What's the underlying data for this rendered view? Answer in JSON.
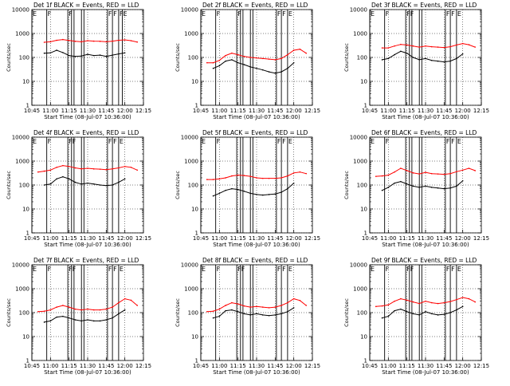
{
  "figure": {
    "time_ticks": [
      "10:45",
      "11:00",
      "11:15",
      "11:30",
      "11:45",
      "12:00",
      "12:15"
    ],
    "log_ticks": [
      "1",
      "10",
      "100",
      "1000",
      "10000"
    ],
    "colors": {
      "events": "#000000",
      "lld": "#ff0000",
      "axis": "#000000",
      "grid": "#000000"
    }
  },
  "chart_data": [
    {
      "type": "line",
      "title": "Det 1f BLACK = Events, RED = LLD",
      "xlabel": "Start Time (08-Jul-07 10:36:00)",
      "ylabel": "Counts/sec",
      "y_scale": "log",
      "ylim": [
        1,
        10000
      ],
      "xlim": [
        "10:45",
        "12:15"
      ],
      "grid": "dotted",
      "x": [
        "10:50",
        "10:55",
        "11:00",
        "11:05",
        "11:10",
        "11:15",
        "11:20",
        "11:25",
        "11:30",
        "11:35",
        "11:40",
        "11:45",
        "11:50",
        "11:55",
        "12:00",
        "12:05",
        "12:10"
      ],
      "series": [
        {
          "name": "Events",
          "values": [
            null,
            150,
            155,
            200,
            160,
            120,
            110,
            115,
            135,
            120,
            125,
            110,
            125,
            140,
            155,
            null,
            null
          ]
        },
        {
          "name": "LLD",
          "values": [
            null,
            430,
            450,
            520,
            560,
            510,
            470,
            450,
            500,
            480,
            470,
            450,
            480,
            520,
            540,
            500,
            440
          ]
        }
      ],
      "markers": [
        {
          "time": "10:45",
          "label": "E"
        },
        {
          "time": "10:57",
          "label": "F"
        },
        {
          "time": "11:14",
          "label": "F"
        },
        {
          "time": "11:17",
          "label": ""
        },
        {
          "time": "11:19",
          "label": ""
        },
        {
          "time": "11:25",
          "label": ""
        },
        {
          "time": "11:27",
          "label": ""
        },
        {
          "time": "11:46",
          "label": "F"
        },
        {
          "time": "11:50",
          "label": "F"
        },
        {
          "time": "11:55",
          "label": "F"
        },
        {
          "time": "11:58",
          "label": "E"
        }
      ]
    },
    {
      "type": "line",
      "title": "Det 2f BLACK = Events, RED = LLD",
      "xlabel": "Start Time (08-Jul-07 10:36:00)",
      "ylabel": "Counts/sec",
      "y_scale": "log",
      "ylim": [
        1,
        10000
      ],
      "xlim": [
        "10:45",
        "12:15"
      ],
      "grid": "dotted",
      "x": [
        "10:50",
        "10:55",
        "11:00",
        "11:05",
        "11:10",
        "11:15",
        "11:20",
        "11:25",
        "11:30",
        "11:35",
        "11:40",
        "11:45",
        "11:50",
        "11:55",
        "12:00",
        "12:05",
        "12:10"
      ],
      "series": [
        {
          "name": "Events",
          "values": [
            null,
            35,
            45,
            70,
            80,
            60,
            50,
            40,
            35,
            30,
            25,
            22,
            25,
            35,
            60,
            null,
            null
          ]
        },
        {
          "name": "LLD",
          "values": [
            60,
            60,
            75,
            120,
            150,
            130,
            110,
            100,
            95,
            90,
            85,
            80,
            90,
            130,
            200,
            220,
            150
          ]
        }
      ],
      "markers": [
        {
          "time": "10:45",
          "label": "E"
        },
        {
          "time": "10:57",
          "label": "F"
        },
        {
          "time": "11:14",
          "label": "F"
        },
        {
          "time": "11:17",
          "label": ""
        },
        {
          "time": "11:19",
          "label": ""
        },
        {
          "time": "11:25",
          "label": ""
        },
        {
          "time": "11:27",
          "label": ""
        },
        {
          "time": "11:46",
          "label": "F"
        },
        {
          "time": "11:50",
          "label": "F"
        },
        {
          "time": "11:55",
          "label": "E"
        }
      ]
    },
    {
      "type": "line",
      "title": "Det 3f BLACK = Events, RED = LLD",
      "xlabel": "Start Time (08-Jul-07 10:36:00)",
      "ylabel": "Counts/sec",
      "y_scale": "log",
      "ylim": [
        1,
        10000
      ],
      "xlim": [
        "10:45",
        "12:15"
      ],
      "grid": "dotted",
      "x": [
        "10:50",
        "10:55",
        "11:00",
        "11:05",
        "11:10",
        "11:15",
        "11:20",
        "11:25",
        "11:30",
        "11:35",
        "11:40",
        "11:45",
        "11:50",
        "11:55",
        "12:00",
        "12:05",
        "12:10"
      ],
      "series": [
        {
          "name": "Events",
          "values": [
            null,
            80,
            90,
            130,
            180,
            150,
            100,
            80,
            90,
            75,
            70,
            65,
            70,
            90,
            140,
            null,
            null
          ]
        },
        {
          "name": "LLD",
          "values": [
            null,
            250,
            250,
            300,
            350,
            330,
            300,
            270,
            300,
            280,
            270,
            260,
            280,
            330,
            380,
            340,
            270
          ]
        }
      ],
      "markers": [
        {
          "time": "10:45",
          "label": "E"
        },
        {
          "time": "10:57",
          "label": "F"
        },
        {
          "time": "11:14",
          "label": "F"
        },
        {
          "time": "11:17",
          "label": "F"
        },
        {
          "time": "11:19",
          "label": ""
        },
        {
          "time": "11:25",
          "label": ""
        },
        {
          "time": "11:27",
          "label": ""
        },
        {
          "time": "11:46",
          "label": "F"
        },
        {
          "time": "11:50",
          "label": "F"
        },
        {
          "time": "11:55",
          "label": "E"
        }
      ]
    },
    {
      "type": "line",
      "title": "Det 4f BLACK = Events, RED = LLD",
      "xlabel": "Start Time (08-Jul-07 10:36:00)",
      "ylabel": "Counts/sec",
      "y_scale": "log",
      "ylim": [
        1,
        10000
      ],
      "xlim": [
        "10:45",
        "12:15"
      ],
      "grid": "dotted",
      "x": [
        "10:50",
        "10:55",
        "11:00",
        "11:05",
        "11:10",
        "11:15",
        "11:20",
        "11:25",
        "11:30",
        "11:35",
        "11:40",
        "11:45",
        "11:50",
        "11:55",
        "12:00",
        "12:05",
        "12:10"
      ],
      "series": [
        {
          "name": "Events",
          "values": [
            null,
            100,
            110,
            180,
            220,
            180,
            130,
            110,
            120,
            110,
            100,
            95,
            100,
            130,
            180,
            null,
            null
          ]
        },
        {
          "name": "LLD",
          "values": [
            350,
            380,
            420,
            550,
            650,
            600,
            520,
            470,
            500,
            470,
            460,
            440,
            470,
            520,
            600,
            550,
            420
          ]
        }
      ],
      "markers": [
        {
          "time": "10:45",
          "label": "E"
        },
        {
          "time": "10:57",
          "label": "F"
        },
        {
          "time": "11:14",
          "label": "F"
        },
        {
          "time": "11:17",
          "label": "F"
        },
        {
          "time": "11:19",
          "label": ""
        },
        {
          "time": "11:25",
          "label": ""
        },
        {
          "time": "11:27",
          "label": ""
        },
        {
          "time": "11:46",
          "label": "F"
        },
        {
          "time": "11:50",
          "label": "F"
        },
        {
          "time": "11:55",
          "label": "E"
        }
      ]
    },
    {
      "type": "line",
      "title": "Det 5f BLACK = Events, RED = LLD",
      "xlabel": "Start Time (08-Jul-07 10:36:00)",
      "ylabel": "Counts/sec",
      "y_scale": "log",
      "ylim": [
        1,
        10000
      ],
      "xlim": [
        "10:45",
        "12:15"
      ],
      "grid": "dotted",
      "x": [
        "10:50",
        "10:55",
        "11:00",
        "11:05",
        "11:10",
        "11:15",
        "11:20",
        "11:25",
        "11:30",
        "11:35",
        "11:40",
        "11:45",
        "11:50",
        "11:55",
        "12:00",
        "12:05",
        "12:10"
      ],
      "series": [
        {
          "name": "Events",
          "values": [
            null,
            35,
            45,
            60,
            70,
            65,
            55,
            45,
            40,
            38,
            40,
            42,
            50,
            70,
            120,
            null,
            null
          ]
        },
        {
          "name": "LLD",
          "values": [
            170,
            170,
            180,
            200,
            240,
            260,
            250,
            230,
            200,
            190,
            190,
            190,
            200,
            240,
            320,
            350,
            300
          ]
        }
      ],
      "markers": [
        {
          "time": "10:45",
          "label": "E"
        },
        {
          "time": "10:57",
          "label": "F"
        },
        {
          "time": "11:14",
          "label": ""
        },
        {
          "time": "11:17",
          "label": ""
        },
        {
          "time": "11:19",
          "label": ""
        },
        {
          "time": "11:25",
          "label": ""
        },
        {
          "time": "11:27",
          "label": ""
        },
        {
          "time": "11:46",
          "label": "F"
        },
        {
          "time": "11:50",
          "label": "F"
        },
        {
          "time": "11:55",
          "label": "E"
        }
      ]
    },
    {
      "type": "line",
      "title": "Det 6f BLACK = Events, RED = LLD",
      "xlabel": "Start Time (08-Jul-07 10:36:00)",
      "ylabel": "Counts/sec",
      "y_scale": "log",
      "ylim": [
        1,
        10000
      ],
      "xlim": [
        "10:45",
        "12:15"
      ],
      "grid": "dotted",
      "x": [
        "10:50",
        "10:55",
        "11:00",
        "11:05",
        "11:10",
        "11:15",
        "11:20",
        "11:25",
        "11:30",
        "11:35",
        "11:40",
        "11:45",
        "11:50",
        "11:55",
        "12:00",
        "12:05",
        "12:10"
      ],
      "series": [
        {
          "name": "Events",
          "values": [
            null,
            60,
            80,
            120,
            140,
            110,
            90,
            80,
            90,
            80,
            75,
            70,
            75,
            90,
            150,
            null,
            null
          ]
        },
        {
          "name": "LLD",
          "values": [
            230,
            240,
            260,
            350,
            500,
            400,
            320,
            290,
            340,
            300,
            290,
            280,
            300,
            360,
            420,
            500,
            400
          ]
        }
      ],
      "markers": [
        {
          "time": "10:45",
          "label": "E"
        },
        {
          "time": "10:57",
          "label": "F"
        },
        {
          "time": "11:14",
          "label": ""
        },
        {
          "time": "11:17",
          "label": ""
        },
        {
          "time": "11:19",
          "label": ""
        },
        {
          "time": "11:25",
          "label": ""
        },
        {
          "time": "11:27",
          "label": ""
        },
        {
          "time": "11:46",
          "label": "F"
        },
        {
          "time": "11:50",
          "label": "F"
        },
        {
          "time": "11:55",
          "label": "E"
        }
      ]
    },
    {
      "type": "line",
      "title": "Det 7f BLACK = Events, RED = LLD",
      "xlabel": "Start Time (08-Jul-07 10:36:00)",
      "ylabel": "Counts/sec",
      "y_scale": "log",
      "ylim": [
        1,
        10000
      ],
      "xlim": [
        "10:45",
        "12:15"
      ],
      "grid": "dotted",
      "x": [
        "10:50",
        "10:55",
        "11:00",
        "11:05",
        "11:10",
        "11:15",
        "11:20",
        "11:25",
        "11:30",
        "11:35",
        "11:40",
        "11:45",
        "11:50",
        "11:55",
        "12:00",
        "12:05",
        "12:10"
      ],
      "series": [
        {
          "name": "Events",
          "values": [
            null,
            40,
            45,
            65,
            70,
            60,
            50,
            45,
            50,
            45,
            45,
            50,
            60,
            90,
            130,
            null,
            null
          ]
        },
        {
          "name": "LLD",
          "values": [
            110,
            115,
            130,
            170,
            200,
            170,
            140,
            130,
            140,
            130,
            130,
            140,
            170,
            260,
            380,
            330,
            200
          ]
        }
      ],
      "markers": [
        {
          "time": "10:45",
          "label": "E"
        },
        {
          "time": "10:57",
          "label": "F"
        },
        {
          "time": "11:14",
          "label": "F"
        },
        {
          "time": "11:17",
          "label": "F"
        },
        {
          "time": "11:19",
          "label": ""
        },
        {
          "time": "11:25",
          "label": ""
        },
        {
          "time": "11:27",
          "label": ""
        },
        {
          "time": "11:46",
          "label": "F"
        },
        {
          "time": "11:50",
          "label": "F"
        },
        {
          "time": "11:55",
          "label": "E"
        }
      ]
    },
    {
      "type": "line",
      "title": "Det 8f BLACK = Events, RED = LLD",
      "xlabel": "Start Time (08-Jul-07 10:36:00)",
      "ylabel": "Counts/sec",
      "y_scale": "log",
      "ylim": [
        1,
        10000
      ],
      "xlim": [
        "10:45",
        "12:15"
      ],
      "grid": "dotted",
      "x": [
        "10:50",
        "10:55",
        "11:00",
        "11:05",
        "11:10",
        "11:15",
        "11:20",
        "11:25",
        "11:30",
        "11:35",
        "11:40",
        "11:45",
        "11:50",
        "11:55",
        "12:00",
        "12:05",
        "12:10"
      ],
      "series": [
        {
          "name": "Events",
          "values": [
            null,
            60,
            70,
            120,
            130,
            110,
            90,
            80,
            90,
            80,
            75,
            80,
            90,
            110,
            160,
            null,
            null
          ]
        },
        {
          "name": "LLD",
          "values": [
            110,
            115,
            140,
            200,
            260,
            230,
            190,
            170,
            180,
            170,
            160,
            170,
            200,
            260,
            380,
            320,
            200
          ]
        }
      ],
      "markers": [
        {
          "time": "10:45",
          "label": "E"
        },
        {
          "time": "10:57",
          "label": "F"
        },
        {
          "time": "11:14",
          "label": "F"
        },
        {
          "time": "11:17",
          "label": "F"
        },
        {
          "time": "11:19",
          "label": ""
        },
        {
          "time": "11:25",
          "label": ""
        },
        {
          "time": "11:27",
          "label": ""
        },
        {
          "time": "11:46",
          "label": "F"
        },
        {
          "time": "11:50",
          "label": "F"
        },
        {
          "time": "11:55",
          "label": "E"
        }
      ]
    },
    {
      "type": "line",
      "title": "Det 9f BLACK = Events, RED = LLD",
      "xlabel": "Start Time (08-Jul-07 10:36:00)",
      "ylabel": "Counts/sec",
      "y_scale": "log",
      "ylim": [
        1,
        10000
      ],
      "xlim": [
        "10:45",
        "12:15"
      ],
      "grid": "dotted",
      "x": [
        "10:50",
        "10:55",
        "11:00",
        "11:05",
        "11:10",
        "11:15",
        "11:20",
        "11:25",
        "11:30",
        "11:35",
        "11:40",
        "11:45",
        "11:50",
        "11:55",
        "12:00",
        "12:05",
        "12:10"
      ],
      "series": [
        {
          "name": "Events",
          "values": [
            null,
            60,
            70,
            120,
            140,
            110,
            90,
            80,
            110,
            90,
            80,
            85,
            100,
            130,
            180,
            null,
            null
          ]
        },
        {
          "name": "LLD",
          "values": [
            180,
            190,
            210,
            300,
            380,
            330,
            280,
            240,
            300,
            260,
            240,
            260,
            290,
            350,
            430,
            380,
            280
          ]
        }
      ],
      "markers": [
        {
          "time": "10:45",
          "label": "E"
        },
        {
          "time": "10:57",
          "label": "F"
        },
        {
          "time": "11:14",
          "label": "F"
        },
        {
          "time": "11:17",
          "label": "F"
        },
        {
          "time": "11:19",
          "label": ""
        },
        {
          "time": "11:25",
          "label": ""
        },
        {
          "time": "11:27",
          "label": ""
        },
        {
          "time": "11:46",
          "label": "F"
        },
        {
          "time": "11:50",
          "label": "F"
        },
        {
          "time": "11:55",
          "label": "E"
        }
      ]
    }
  ]
}
